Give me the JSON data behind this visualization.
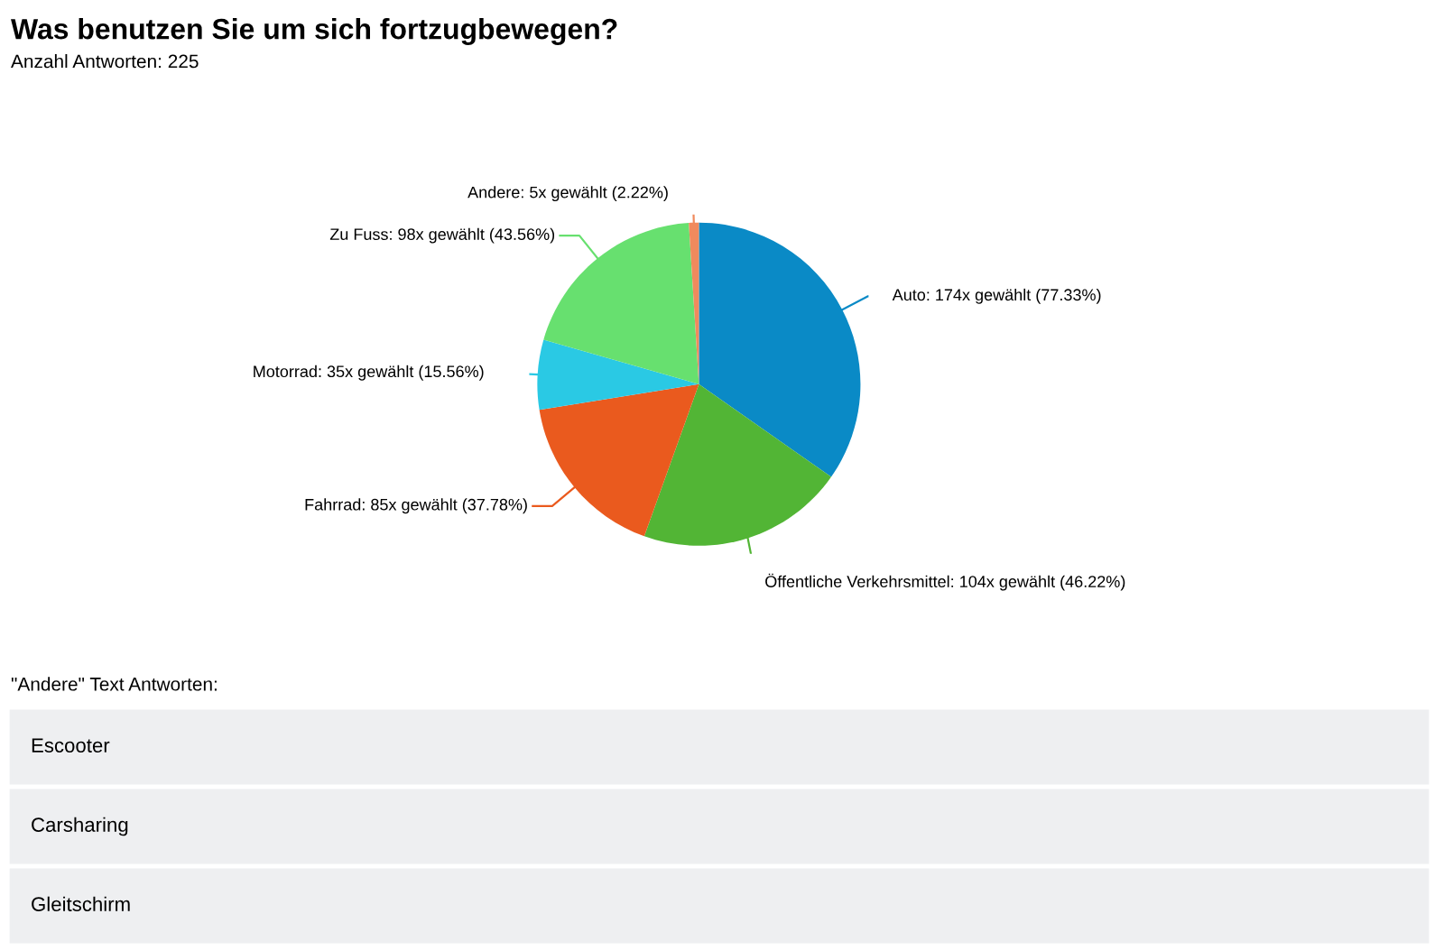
{
  "chart_data": {
    "type": "pie",
    "title": "Was benutzen Sie um sich fortzugbewegen?",
    "subtitle": "Anzahl Antworten: 225",
    "categories": [
      "Auto",
      "Öffentliche Verkehrsmittel",
      "Fahrrad",
      "Motorrad",
      "Zu Fuss",
      "Andere"
    ],
    "values": [
      174,
      104,
      85,
      35,
      98,
      5
    ],
    "value_labels": [
      "174x gewählt (77.33%)",
      "104x gewählt (46.22%)",
      "85x gewählt (37.78%)",
      "35x gewählt (15.56%)",
      "98x gewählt (43.56%)",
      "5x gewählt (2.22%)"
    ],
    "colors": [
      "#0a8ac6",
      "#52b535",
      "#ea5a1e",
      "#2ac9e4",
      "#67e06f",
      "#f08a5d"
    ],
    "annotations": [
      "\"Andere\" Text Antworten:",
      "Escooter",
      "Carsharing",
      "Gleitschirm"
    ]
  }
}
